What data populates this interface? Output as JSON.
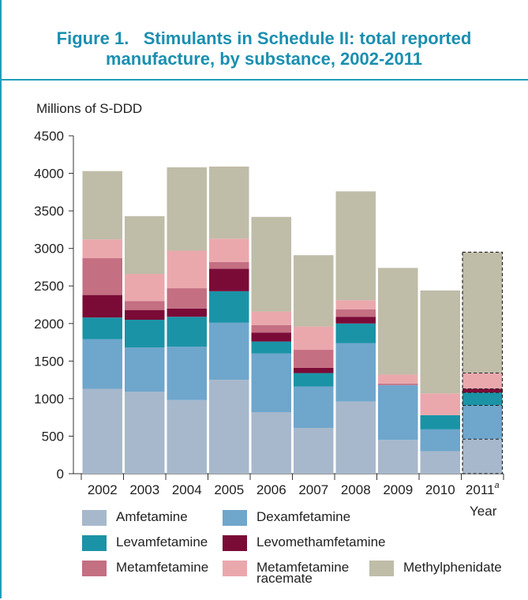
{
  "figure": {
    "title_line1": "Figure 1.   Stimulants in Schedule II: total reported",
    "title_line2": "manufacture, by substance, 2002-2011"
  },
  "colors": {
    "accent": "#1f9fb8",
    "Amfetamine": "#a7b8cc",
    "Dexamfetamine": "#6fa6cc",
    "Levamfetamine": "#1b93a6",
    "Levomethamfetamine": "#7a0b37",
    "Metamfetamine": "#c46f82",
    "Metamfetamine racemate": "#eaa8ad",
    "Methylphenidate": "#bfbca8"
  },
  "legend": [
    {
      "key": "Amfetamine",
      "label": "Amfetamine"
    },
    {
      "key": "Dexamfetamine",
      "label": "Dexamfetamine"
    },
    {
      "key": "Levamfetamine",
      "label": "Levamfetamine"
    },
    {
      "key": "Levomethamfetamine",
      "label": "Levomethamfetamine"
    },
    {
      "key": "Metamfetamine",
      "label": "Metamfetamine"
    },
    {
      "key": "Metamfetamine racemate",
      "label": "Metamfetamine\nracemate"
    },
    {
      "key": "Methylphenidate",
      "label": "Methylphenidate"
    }
  ],
  "chart_data": {
    "type": "bar",
    "stacked": true,
    "ylabel": "Millions of S-DDD",
    "xlabel": "Year",
    "ylim": [
      0,
      4500
    ],
    "yticks": [
      0,
      500,
      1000,
      1500,
      2000,
      2500,
      3000,
      3500,
      4000,
      4500
    ],
    "categories": [
      "2002",
      "2003",
      "2004",
      "2005",
      "2006",
      "2007",
      "2008",
      "2009",
      "2010",
      "2011"
    ],
    "category_superscript": {
      "2011": "a"
    },
    "estimated_categories": [
      "2011"
    ],
    "series": [
      {
        "name": "Amfetamine",
        "values": [
          1130,
          1090,
          980,
          1250,
          820,
          610,
          960,
          450,
          300,
          460
        ]
      },
      {
        "name": "Dexamfetamine",
        "values": [
          660,
          590,
          710,
          760,
          780,
          550,
          780,
          730,
          290,
          450
        ]
      },
      {
        "name": "Levamfetamine",
        "values": [
          290,
          370,
          400,
          420,
          160,
          180,
          260,
          0,
          190,
          170
        ]
      },
      {
        "name": "Levomethamfetamine",
        "values": [
          300,
          130,
          110,
          300,
          120,
          70,
          90,
          0,
          0,
          50
        ]
      },
      {
        "name": "Metamfetamine",
        "values": [
          490,
          120,
          270,
          90,
          100,
          240,
          100,
          20,
          0,
          0
        ]
      },
      {
        "name": "Metamfetamine racemate",
        "values": [
          250,
          360,
          500,
          310,
          180,
          310,
          120,
          120,
          290,
          210
        ]
      },
      {
        "name": "Methylphenidate",
        "values": [
          910,
          770,
          1110,
          960,
          1260,
          950,
          1450,
          1420,
          1370,
          1610
        ]
      }
    ]
  }
}
